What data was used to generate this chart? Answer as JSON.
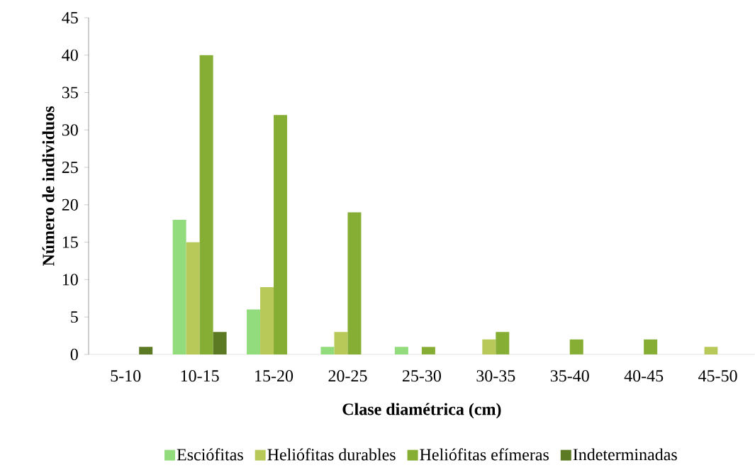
{
  "chart_data": {
    "type": "bar",
    "xlabel": "Clase diamétrica (cm)",
    "ylabel": "Número de individuos",
    "categories": [
      "5-10",
      "10-15",
      "15-20",
      "20-25",
      "25-30",
      "30-35",
      "35-40",
      "40-45",
      "45-50"
    ],
    "series": [
      {
        "name": "Esciófitas",
        "color": "#92dc7e",
        "values": [
          0,
          18,
          6,
          1,
          1,
          0,
          0,
          0,
          0
        ]
      },
      {
        "name": "Heliófitas durables",
        "color": "#b8c95a",
        "values": [
          0,
          15,
          9,
          3,
          0,
          2,
          0,
          0,
          1
        ]
      },
      {
        "name": "Heliófitas efímeras",
        "color": "#86ad34",
        "values": [
          0,
          40,
          32,
          19,
          1,
          3,
          2,
          2,
          0
        ]
      },
      {
        "name": "Indeterminadas",
        "color": "#5c7a24",
        "values": [
          1,
          3,
          0,
          0,
          0,
          0,
          0,
          0,
          0
        ]
      }
    ],
    "ylim": [
      0,
      45
    ],
    "yticks": [
      0,
      5,
      10,
      15,
      20,
      25,
      30,
      35,
      40,
      45
    ],
    "grid": false,
    "legend": "bottom"
  }
}
